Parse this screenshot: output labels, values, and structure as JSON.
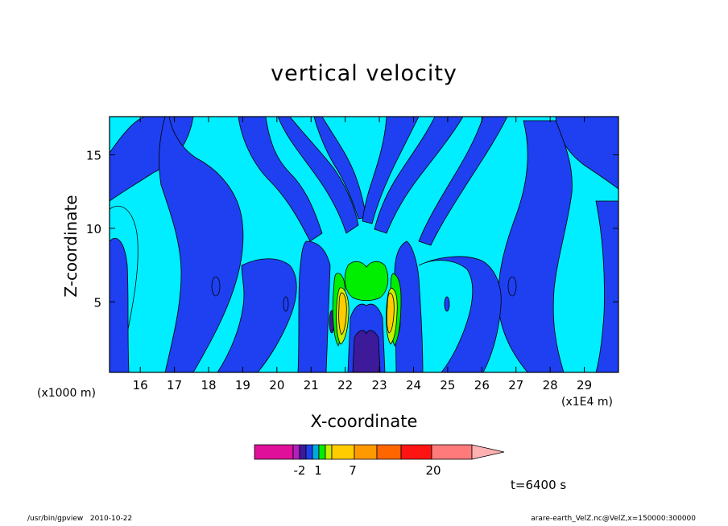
{
  "chart_data": {
    "type": "heatmap",
    "title": "vertical velocity",
    "xlabel": "X-coordinate",
    "ylabel": "Z-coordinate",
    "x_unit": "(x1E4 m)",
    "y_unit": "(x1000 m)",
    "xlim": [
      15.1,
      30
    ],
    "ylim": [
      0.2,
      17.6
    ],
    "x_ticks": [
      "16",
      "17",
      "18",
      "19",
      "20",
      "21",
      "22",
      "23",
      "24",
      "25",
      "26",
      "27",
      "28",
      "29"
    ],
    "y_ticks": [
      "5",
      "10",
      "15"
    ],
    "colorbar": {
      "labels": [
        "-2",
        "1",
        "7",
        "20"
      ],
      "colors": [
        "#e0109a",
        "#b020c0",
        "#3c1a9a",
        "#1e40f0",
        "#00a8e0",
        "#00ee00",
        "#c8ee00",
        "#ffcc00",
        "#ff9900",
        "#ff6600",
        "#ff1414",
        "#ff7a7a",
        "#ffb0b0"
      ]
    },
    "time_label": "t=6400 s",
    "program": "/usr/bin/gpview",
    "date": "2010-10-22",
    "source": "arare-earth_VelZ.nc@VelZ,x=150000:300000"
  }
}
